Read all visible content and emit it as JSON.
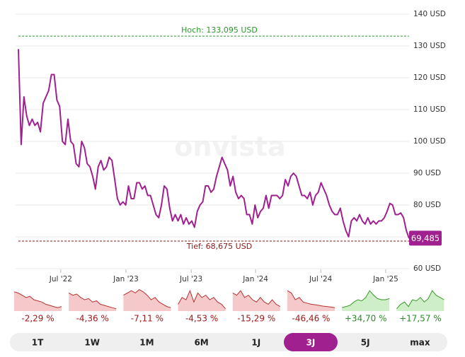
{
  "chart_data": {
    "type": "line",
    "watermark": "onvista",
    "series": [
      {
        "name": null,
        "color": "#a0208f",
        "values": [
          129,
          99,
          114,
          108,
          105,
          107,
          105,
          106,
          103,
          112,
          114,
          116,
          121,
          121,
          113,
          111,
          100,
          99,
          107,
          100,
          99,
          93,
          92,
          100,
          98,
          93,
          92,
          89,
          85,
          92,
          94,
          91,
          92,
          95,
          94,
          88,
          82,
          80,
          81,
          80,
          86,
          82,
          82,
          87,
          87,
          85,
          86,
          83,
          83,
          80,
          77,
          76,
          80,
          86,
          85,
          79,
          75,
          77,
          75,
          77,
          74,
          76,
          74,
          75,
          73,
          78,
          80,
          81,
          86,
          86,
          84,
          85,
          89,
          92,
          95,
          93,
          91,
          86,
          89,
          84,
          82,
          83,
          82,
          77,
          77,
          74,
          80,
          76,
          78,
          79,
          83,
          79,
          83,
          83,
          83,
          82,
          83,
          88,
          86,
          89,
          90,
          89,
          86,
          83,
          83,
          82,
          84,
          80,
          83,
          84,
          87,
          85,
          83,
          80,
          78,
          77,
          77,
          79,
          75,
          72,
          70,
          75,
          76,
          75,
          77,
          75,
          74,
          76,
          74,
          75,
          74,
          75,
          75,
          76,
          78,
          80.5,
          80,
          77,
          77,
          77.5,
          76,
          72,
          69.485
        ]
      }
    ],
    "last_label": {
      "value": 69.485,
      "label": "69,485"
    },
    "high": {
      "value": 133.095,
      "label": "Hoch: 133,095 USD",
      "color": "#2a9a2a"
    },
    "low": {
      "value": 68.675,
      "label": "Tief: 68,675 USD",
      "color": "#8a1a1a"
    },
    "xlim": [
      0,
      142
    ],
    "xticks": [
      {
        "value": 15.4,
        "label": "Jul '22"
      },
      {
        "value": 39.1,
        "label": "Jan '23"
      },
      {
        "value": 62.8,
        "label": "Jul '23"
      },
      {
        "value": 86.2,
        "label": "Jan '24"
      },
      {
        "value": 109.9,
        "label": "Jul '24"
      },
      {
        "value": 133.5,
        "label": "Jan '25"
      }
    ],
    "ylim": [
      60,
      140
    ],
    "yticks": [
      {
        "value": 60,
        "label": "60 USD"
      },
      {
        "value": 70,
        "label": ""
      },
      {
        "value": 80,
        "label": "80 USD"
      },
      {
        "value": 90,
        "label": "90 USD"
      },
      {
        "value": 100,
        "label": "100 USD"
      },
      {
        "value": 110,
        "label": "110 USD"
      },
      {
        "value": 120,
        "label": "120 USD"
      },
      {
        "value": 130,
        "label": "130 USD"
      },
      {
        "value": 140,
        "label": "140 USD"
      }
    ],
    "grid": true,
    "performance": [
      {
        "value": -2.29,
        "label": "-2,29 %"
      },
      {
        "value": -4.36,
        "label": "-4,36 %"
      },
      {
        "value": -7.11,
        "label": "-7,11 %"
      },
      {
        "value": -4.53,
        "label": "-4,53 %"
      },
      {
        "value": -15.29,
        "label": "-15,29 %"
      },
      {
        "value": -46.46,
        "label": "-46,46 %"
      },
      {
        "value": 34.7,
        "label": "+34,70 %"
      },
      {
        "value": 17.57,
        "label": "+17,57 %"
      }
    ],
    "tabs": [
      "1T",
      "1W",
      "1M",
      "6M",
      "1J",
      "3J",
      "5J",
      "max"
    ],
    "active_tab": 5
  }
}
